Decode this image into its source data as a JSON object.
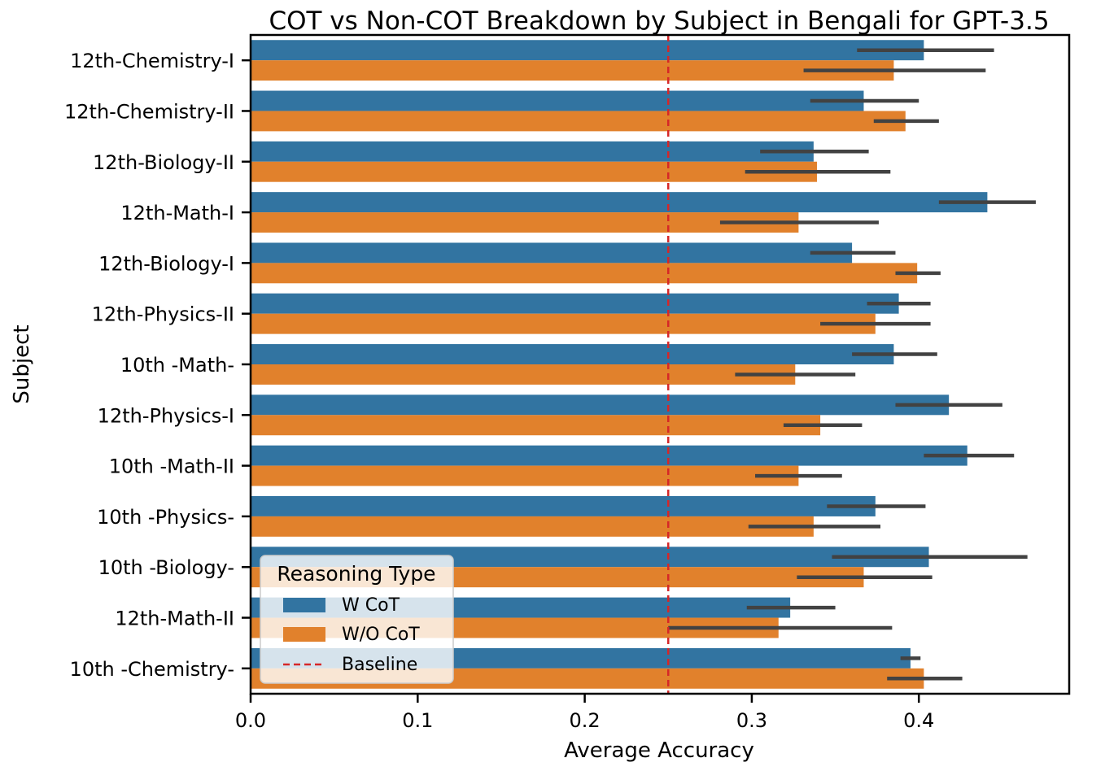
{
  "chart_data": {
    "type": "bar",
    "orientation": "horizontal",
    "title": "COT vs Non-COT Breakdown by Subject in Bengali for GPT-3.5",
    "xlabel": "Average Accuracy",
    "ylabel": "Subject",
    "xlim": [
      0.0,
      0.49
    ],
    "xticks": [
      "0.0",
      "0.1",
      "0.2",
      "0.3",
      "0.4"
    ],
    "categories": [
      "12th-Chemistry-I",
      "12th-Chemistry-II",
      "12th-Biology-II",
      "12th-Math-I",
      "12th-Biology-I",
      "12th-Physics-II",
      "10th -Math-",
      "12th-Physics-I",
      "10th -Math-II",
      "10th -Physics-",
      "10th -Biology-",
      "12th-Math-II",
      "10th -Chemistry-"
    ],
    "series": [
      {
        "name": "W CoT",
        "color": "#3274a1",
        "values": [
          0.403,
          0.367,
          0.337,
          0.441,
          0.36,
          0.388,
          0.385,
          0.418,
          0.429,
          0.374,
          0.406,
          0.323,
          0.395
        ],
        "error_low": [
          0.363,
          0.335,
          0.305,
          0.412,
          0.335,
          0.369,
          0.36,
          0.386,
          0.403,
          0.345,
          0.348,
          0.297,
          0.389
        ],
        "error_high": [
          0.445,
          0.4,
          0.37,
          0.47,
          0.386,
          0.407,
          0.411,
          0.45,
          0.457,
          0.404,
          0.465,
          0.35,
          0.401
        ]
      },
      {
        "name": "W/O CoT",
        "color": "#e1812c",
        "values": [
          0.385,
          0.392,
          0.339,
          0.328,
          0.399,
          0.374,
          0.326,
          0.341,
          0.328,
          0.337,
          0.367,
          0.316,
          0.403
        ],
        "error_low": [
          0.331,
          0.373,
          0.296,
          0.281,
          0.386,
          0.341,
          0.29,
          0.319,
          0.302,
          0.298,
          0.327,
          0.25,
          0.381
        ],
        "error_high": [
          0.44,
          0.412,
          0.383,
          0.376,
          0.413,
          0.407,
          0.362,
          0.366,
          0.354,
          0.377,
          0.408,
          0.384,
          0.426
        ]
      }
    ],
    "baseline": {
      "name": "Baseline",
      "value": 0.25,
      "color": "#d62728"
    },
    "legend": {
      "title": "Reasoning Type",
      "position": "lower-left",
      "entries": [
        "W CoT",
        "W/O CoT",
        "Baseline"
      ]
    },
    "grid": false
  }
}
